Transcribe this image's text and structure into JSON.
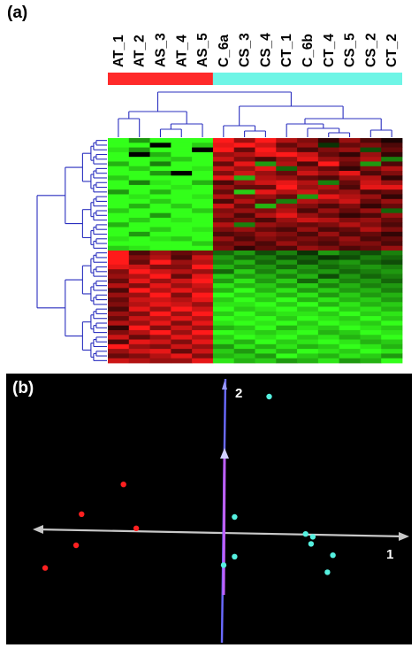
{
  "figure": {
    "panel_a_label": "(a)",
    "panel_b_label": "(b)"
  },
  "chart_data": [
    {
      "type": "heatmap",
      "columns": [
        "AT_1",
        "AT_2",
        "AS_3",
        "AT_4",
        "AS_5",
        "C_6a",
        "CS_3",
        "CS_4",
        "CT_1",
        "C_6b",
        "CT_4",
        "CS_5",
        "CS_2",
        "CT_2"
      ],
      "group_bar": [
        {
          "span": [
            0,
            4
          ],
          "color": "#ff2a2a"
        },
        {
          "span": [
            5,
            13
          ],
          "color": "#6ff5e6"
        }
      ],
      "colors": {
        "high": "#ff1a1a",
        "low": "#33ff1a",
        "neutral": "#000000"
      },
      "rows": 48,
      "values": [
        [
          -1,
          -0.6,
          -1,
          -1,
          -1,
          1,
          0.6,
          1,
          0.7,
          0.5,
          0.2,
          0.6,
          0.3,
          0.1
        ],
        [
          -1,
          -1,
          0,
          -1,
          -0.8,
          0.9,
          1,
          0.8,
          0.4,
          0.6,
          -0.2,
          0.4,
          0.5,
          0.3
        ],
        [
          -0.9,
          -0.6,
          -1,
          -1,
          0,
          1,
          0.4,
          1,
          0.6,
          0.3,
          0.5,
          0.6,
          -0.3,
          0.4
        ],
        [
          -1,
          0,
          -0.7,
          -1,
          -1,
          0.6,
          0.7,
          0.9,
          1,
          0.8,
          0.4,
          0.2,
          0.6,
          0.2
        ],
        [
          -1,
          -1,
          -0.9,
          -0.8,
          -1,
          0.8,
          0.5,
          0.3,
          0.6,
          0.9,
          0.6,
          0.5,
          0.7,
          -0.5
        ],
        [
          -0.7,
          -1,
          -0.5,
          -1,
          -1,
          0.4,
          0.9,
          -0.6,
          0.7,
          0.3,
          1,
          0.4,
          -0.6,
          0.3
        ],
        [
          -1,
          -0.8,
          -1,
          -1,
          -0.9,
          0.8,
          0.6,
          0.9,
          -0.4,
          0.6,
          0.4,
          0.2,
          0.5,
          0.7
        ],
        [
          -1,
          -1,
          -0.6,
          0,
          -1,
          0.5,
          0.8,
          0.6,
          0.4,
          0.8,
          0.6,
          0.9,
          0.3,
          0.5
        ],
        [
          -0.8,
          -1,
          -1,
          -1,
          -1,
          0.9,
          -0.7,
          0.7,
          0.6,
          0.4,
          0.3,
          0.6,
          0.7,
          0.2
        ],
        [
          -1,
          -0.5,
          -0.9,
          -1,
          -0.7,
          0.3,
          0.6,
          0.8,
          0.9,
          0.7,
          -0.5,
          0.4,
          0.8,
          0.6
        ],
        [
          -1,
          -1,
          -1,
          -0.9,
          -1,
          0.6,
          0.4,
          0.4,
          1,
          0.6,
          0.7,
          0.3,
          0.9,
          0.9
        ],
        [
          -0.6,
          -1,
          -0.7,
          -1,
          -1,
          0.4,
          -0.8,
          0.9,
          0.7,
          0.8,
          0.5,
          0.6,
          0.3,
          0.4
        ],
        [
          -1,
          -0.9,
          -1,
          -1,
          -0.9,
          0.7,
          0.5,
          0.6,
          0.4,
          -0.6,
          0.9,
          0.7,
          0.6,
          0.2
        ],
        [
          -1,
          -1,
          -0.8,
          -1,
          -1,
          0.3,
          0.7,
          0.4,
          -0.5,
          0.7,
          0.6,
          0.8,
          0.4,
          0.6
        ],
        [
          -1,
          -0.7,
          -1,
          -0.8,
          -1,
          0.8,
          0.4,
          -0.7,
          0.6,
          0.5,
          0.3,
          0.5,
          0.2,
          0.4
        ],
        [
          -0.8,
          -1,
          -1,
          -1,
          -0.8,
          0.5,
          0.6,
          0.5,
          0.7,
          0.3,
          0.6,
          0.4,
          0.6,
          -0.4
        ],
        [
          -1,
          -1,
          -0.6,
          -1,
          -1,
          0.6,
          0.3,
          0.7,
          0.9,
          0.6,
          0.4,
          0.2,
          0.3,
          0.6
        ],
        [
          -1,
          -0.8,
          -1,
          -0.9,
          -1,
          0.4,
          0.5,
          0.3,
          0.6,
          0.8,
          0.7,
          0.5,
          0.6,
          0.4
        ],
        [
          -0.7,
          -1,
          -1,
          -1,
          -1,
          0.7,
          -0.5,
          0.6,
          0.5,
          0.4,
          0.5,
          0.7,
          0.5,
          0.3
        ],
        [
          -1,
          -1,
          -0.8,
          -1,
          -0.9,
          0.5,
          0.6,
          0.4,
          0.3,
          0.6,
          0.3,
          0.4,
          0.7,
          0.5
        ],
        [
          -1,
          -0.6,
          -1,
          -1,
          -1,
          0.3,
          0.4,
          0.6,
          0.5,
          0.3,
          0.6,
          0.3,
          0.4,
          0.2
        ],
        [
          -0.9,
          -1,
          -0.9,
          -0.8,
          -1,
          0.6,
          0.3,
          0.5,
          0.4,
          0.5,
          0.4,
          0.6,
          0.3,
          0.4
        ],
        [
          -1,
          -1,
          -1,
          -1,
          -0.8,
          0.4,
          0.5,
          0.3,
          0.6,
          0.4,
          0.3,
          0.5,
          0.5,
          0.3
        ],
        [
          -0.8,
          -0.9,
          -1,
          -1,
          -1,
          0.5,
          0.2,
          0.4,
          0.3,
          0.6,
          0.5,
          0.3,
          0.4,
          0.6
        ],
        [
          1,
          0.3,
          0.6,
          0.4,
          0.5,
          -0.4,
          -0.6,
          -0.3,
          -0.5,
          -0.2,
          -0.6,
          -0.4,
          -0.3,
          -0.5
        ],
        [
          1,
          0.5,
          0.7,
          0.3,
          0.8,
          -0.6,
          -0.4,
          -0.5,
          -0.3,
          -0.4,
          -0.2,
          -0.3,
          -0.5,
          -0.4
        ],
        [
          1,
          0.4,
          1,
          0.6,
          0.7,
          -0.5,
          -0.7,
          -0.4,
          -0.6,
          -0.3,
          -0.5,
          -0.6,
          -0.4,
          -0.3
        ],
        [
          0.9,
          0.8,
          0.5,
          0.5,
          1,
          -0.7,
          -0.5,
          -0.6,
          -0.4,
          -0.6,
          -0.4,
          -0.5,
          -0.6,
          -0.5
        ],
        [
          0.5,
          1,
          0.8,
          0.7,
          0.6,
          -0.4,
          -0.8,
          -0.5,
          -0.7,
          -0.5,
          -0.6,
          -0.4,
          -0.5,
          -0.6
        ],
        [
          0.6,
          0.7,
          1,
          0.4,
          0.9,
          -0.8,
          -0.6,
          -0.7,
          -0.5,
          -0.7,
          -0.3,
          -0.6,
          -0.4,
          -0.5
        ],
        [
          0.4,
          0.9,
          0.6,
          0.8,
          1,
          -0.6,
          -0.9,
          -0.6,
          -0.8,
          -0.4,
          -0.7,
          -0.5,
          -0.6,
          -0.4
        ],
        [
          0.7,
          0.5,
          0.9,
          0.6,
          0.8,
          -0.9,
          -0.7,
          -0.8,
          -0.6,
          -0.8,
          -0.5,
          -0.7,
          -0.5,
          -0.6
        ],
        [
          0.3,
          1,
          0.7,
          0.9,
          0.7,
          -0.7,
          -1,
          -0.7,
          -0.9,
          -0.6,
          -0.8,
          -0.6,
          -0.7,
          -0.5
        ],
        [
          0.6,
          0.6,
          1,
          0.5,
          1,
          -1,
          -0.8,
          -0.9,
          -0.7,
          -0.9,
          -0.6,
          -0.8,
          -0.6,
          -0.7
        ],
        [
          0.4,
          0.8,
          0.8,
          0.7,
          0.9,
          -0.8,
          -1,
          -0.8,
          -1,
          -0.7,
          -0.9,
          -0.7,
          -0.8,
          -0.6
        ],
        [
          0.5,
          0.7,
          0.9,
          0.8,
          0.6,
          -0.9,
          -0.9,
          -1,
          -0.8,
          -1,
          -0.7,
          -0.9,
          -0.7,
          -0.8
        ],
        [
          0.3,
          0.9,
          0.6,
          1,
          0.8,
          -1,
          -0.8,
          -0.9,
          -1,
          -0.8,
          -1,
          -0.8,
          -0.9,
          -0.7
        ],
        [
          0.6,
          0.5,
          1,
          0.6,
          1,
          -0.8,
          -1,
          -0.8,
          -0.9,
          -0.9,
          -0.8,
          -1,
          -0.8,
          -0.9
        ],
        [
          0.4,
          0.8,
          0.7,
          0.9,
          0.7,
          -1,
          -0.9,
          -1,
          -0.8,
          -1,
          -0.9,
          -0.8,
          -1,
          -0.8
        ],
        [
          0.7,
          0.6,
          0.9,
          0.5,
          0.9,
          -0.9,
          -1,
          -0.9,
          -1,
          -0.8,
          -1,
          -0.9,
          -0.8,
          -1
        ],
        [
          0.2,
          1,
          0.5,
          0.8,
          0.6,
          -0.7,
          -0.8,
          -1,
          -0.7,
          -0.9,
          -0.8,
          -1,
          -0.9,
          -0.8
        ],
        [
          0.5,
          0.7,
          1,
          0.6,
          1,
          -1,
          -0.9,
          -0.8,
          -0.9,
          -1,
          -0.7,
          -0.8,
          -1,
          -0.9
        ],
        [
          0.8,
          0.4,
          0.6,
          0.9,
          0.7,
          -0.8,
          -1,
          -0.9,
          -1,
          -0.8,
          -0.9,
          -0.7,
          -0.8,
          -1
        ],
        [
          0.3,
          0.9,
          0.8,
          0.5,
          0.9,
          -0.9,
          -0.7,
          -1,
          -0.8,
          -0.9,
          -1,
          -0.9,
          -0.7,
          -0.8
        ],
        [
          1,
          0.6,
          0.5,
          0.8,
          0.6,
          -0.6,
          -0.9,
          -0.7,
          -0.9,
          -0.7,
          -0.8,
          -1,
          -0.9,
          -0.7
        ],
        [
          0.6,
          0.8,
          0.9,
          0.4,
          0.8,
          -0.8,
          -0.6,
          -0.9,
          -0.7,
          -1,
          -0.9,
          -0.8,
          -1,
          -0.9
        ],
        [
          0.4,
          0.5,
          0.7,
          0.9,
          0.5,
          -0.7,
          -0.8,
          -0.6,
          -1,
          -0.8,
          -0.7,
          -0.9,
          -0.8,
          -0.6
        ],
        [
          0.8,
          0.7,
          0.6,
          0.6,
          0.9,
          -0.9,
          -0.7,
          -0.8,
          -0.6,
          -0.7,
          -0.9,
          -0.6,
          -0.7,
          -1
        ]
      ]
    },
    {
      "type": "scatter",
      "axes": [
        {
          "name": "1",
          "range": [
            -1,
            1
          ]
        },
        {
          "name": "2",
          "range": [
            -1,
            1
          ]
        }
      ],
      "background": "#000000",
      "series": [
        {
          "color": "#ff2020",
          "points": [
            [
              -0.55,
              0.33
            ],
            [
              -0.78,
              0.12
            ],
            [
              -0.48,
              0.02
            ],
            [
              -0.81,
              -0.1
            ],
            [
              -0.98,
              -0.26
            ]
          ]
        },
        {
          "color": "#55f0df",
          "points": [
            [
              0.25,
              0.95
            ],
            [
              0.06,
              0.1
            ],
            [
              0.45,
              -0.02
            ],
            [
              0.49,
              -0.04
            ],
            [
              0.48,
              -0.09
            ],
            [
              0.6,
              -0.17
            ],
            [
              0.06,
              -0.18
            ],
            [
              0.57,
              -0.29
            ],
            [
              0.0,
              -0.24
            ]
          ]
        }
      ]
    }
  ]
}
